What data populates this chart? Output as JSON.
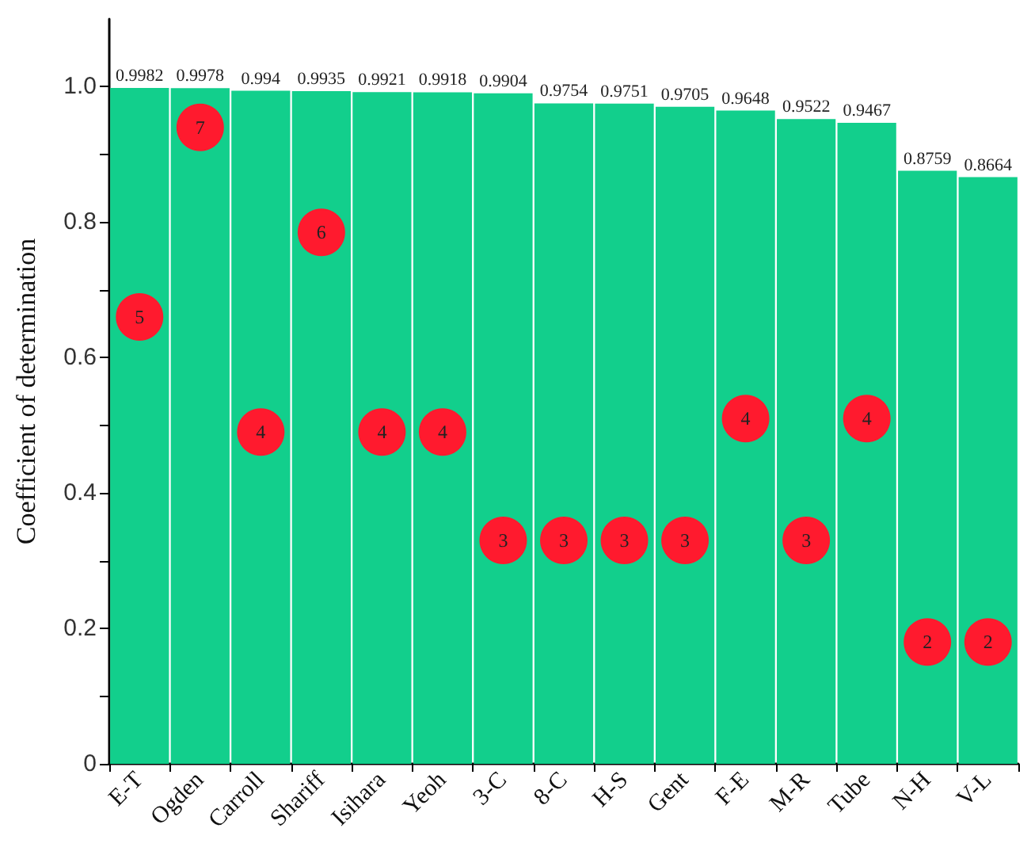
{
  "chart_data": {
    "type": "bar",
    "ylabel": "Coefficient of determination",
    "categories": [
      "E-T",
      "Ogden",
      "Carroll",
      "Shariff",
      "Isihara",
      "Yeoh",
      "3-C",
      "8-C",
      "H-S",
      "Gent",
      "F-E",
      "M-R",
      "Tube",
      "N-H",
      "V-L"
    ],
    "series": [
      {
        "color": "#12cf8c",
        "values": [
          0.9982,
          0.9978,
          0.994,
          0.9935,
          0.9921,
          0.9918,
          0.9904,
          0.9754,
          0.9751,
          0.9705,
          0.9648,
          0.9522,
          0.9467,
          0.8759,
          0.8664
        ]
      }
    ],
    "data_labels": true,
    "annotations": [
      {
        "text": "5",
        "x": "E-T",
        "y": 0.66
      },
      {
        "text": "7",
        "x": "Ogden",
        "y": 0.94
      },
      {
        "text": "4",
        "x": "Carroll",
        "y": 0.49
      },
      {
        "text": "6",
        "x": "Shariff",
        "y": 0.785
      },
      {
        "text": "4",
        "x": "Isihara",
        "y": 0.49
      },
      {
        "text": "4",
        "x": "Yeoh",
        "y": 0.49
      },
      {
        "text": "3",
        "x": "3-C",
        "y": 0.33
      },
      {
        "text": "3",
        "x": "8-C",
        "y": 0.33
      },
      {
        "text": "3",
        "x": "H-S",
        "y": 0.33
      },
      {
        "text": "3",
        "x": "Gent",
        "y": 0.33
      },
      {
        "text": "4",
        "x": "F-E",
        "y": 0.51
      },
      {
        "text": "3",
        "x": "M-R",
        "y": 0.33
      },
      {
        "text": "4",
        "x": "Tube",
        "y": 0.51
      },
      {
        "text": "2",
        "x": "N-H",
        "y": 0.18
      },
      {
        "text": "2",
        "x": "V-L",
        "y": 0.18
      }
    ],
    "ylim": [
      0,
      1.1
    ],
    "yticks": [
      0,
      {
        "value": 0.1,
        "label": null
      },
      0.2,
      {
        "value": 0.3,
        "label": null
      },
      0.4,
      {
        "value": 0.5,
        "label": null
      },
      0.6,
      {
        "value": 0.7,
        "label": null
      },
      0.8,
      {
        "value": 0.9,
        "label": null
      },
      {
        "value": 1,
        "label": "1.0"
      }
    ],
    "grid": false
  }
}
